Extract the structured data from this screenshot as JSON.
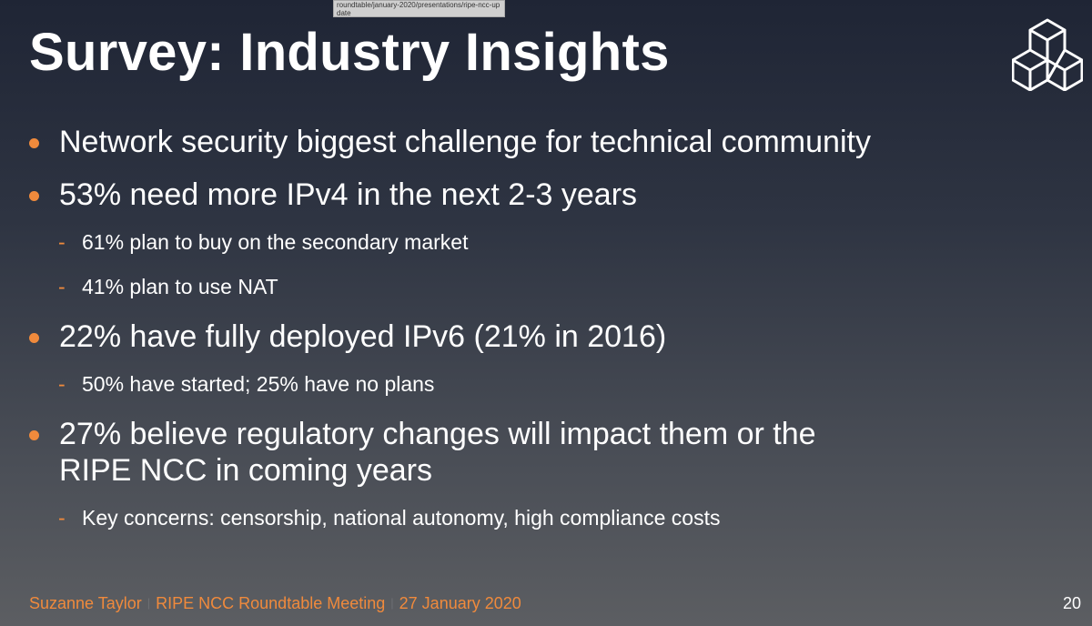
{
  "tooltip": {
    "text": "roundtable/january-2020/presentations/ripe-ncc-update"
  },
  "slide": {
    "title": "Survey: Industry Insights",
    "logo_icon": "ripe-ncc-cubes-logo",
    "bullets": [
      {
        "text": "Network security biggest challenge for technical community"
      },
      {
        "text": "53% need more IPv4 in the next 2-3 years",
        "sub": [
          "61% plan to buy on the secondary market",
          "41% plan to use NAT"
        ]
      },
      {
        "text": "22% have fully deployed IPv6 (21% in 2016)",
        "sub": [
          "50% have started; 25% have no plans"
        ]
      },
      {
        "text": "27% believe regulatory changes will impact them or the RIPE NCC in coming years",
        "sub": [
          "Key concerns: censorship, national autonomy, high compliance costs"
        ]
      }
    ],
    "sub_marker": "-",
    "footer": {
      "presenter": "Suzanne Taylor",
      "event": "RIPE NCC Roundtable Meeting",
      "date": "27 January 2020",
      "separator": "|"
    },
    "page_number": "20"
  },
  "colors": {
    "accent": "#f08a3c",
    "title": "#ffffff",
    "background_top": "#1f2535",
    "background_bottom": "#5c5e62"
  }
}
